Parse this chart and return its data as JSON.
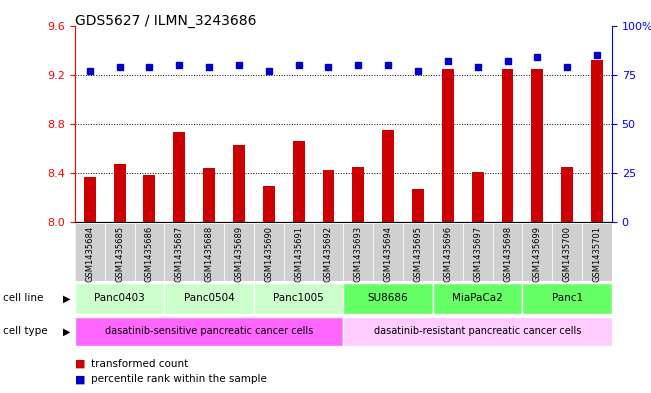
{
  "title": "GDS5627 / ILMN_3243686",
  "samples": [
    "GSM1435684",
    "GSM1435685",
    "GSM1435686",
    "GSM1435687",
    "GSM1435688",
    "GSM1435689",
    "GSM1435690",
    "GSM1435691",
    "GSM1435692",
    "GSM1435693",
    "GSM1435694",
    "GSM1435695",
    "GSM1435696",
    "GSM1435697",
    "GSM1435698",
    "GSM1435699",
    "GSM1435700",
    "GSM1435701"
  ],
  "transformed_count": [
    8.37,
    8.47,
    8.38,
    8.73,
    8.44,
    8.63,
    8.29,
    8.66,
    8.42,
    8.45,
    8.75,
    8.27,
    9.25,
    8.41,
    9.25,
    9.25,
    8.45,
    9.32
  ],
  "percentile_rank": [
    77,
    79,
    79,
    80,
    79,
    80,
    77,
    80,
    79,
    80,
    80,
    77,
    82,
    79,
    82,
    84,
    79,
    85
  ],
  "cell_lines": [
    {
      "label": "Panc0403",
      "start": 0,
      "end": 2,
      "color": "#ccffcc"
    },
    {
      "label": "Panc0504",
      "start": 3,
      "end": 5,
      "color": "#ccffcc"
    },
    {
      "label": "Panc1005",
      "start": 6,
      "end": 8,
      "color": "#ccffcc"
    },
    {
      "label": "SU8686",
      "start": 9,
      "end": 11,
      "color": "#66ff66"
    },
    {
      "label": "MiaPaCa2",
      "start": 12,
      "end": 14,
      "color": "#66ff66"
    },
    {
      "label": "Panc1",
      "start": 15,
      "end": 17,
      "color": "#66ff66"
    }
  ],
  "cell_types": [
    {
      "label": "dasatinib-sensitive pancreatic cancer cells",
      "start": 0,
      "end": 8,
      "color": "#ff66ff"
    },
    {
      "label": "dasatinib-resistant pancreatic cancer cells",
      "start": 9,
      "end": 17,
      "color": "#ffccff"
    }
  ],
  "bar_color": "#cc0000",
  "dot_color": "#0000cc",
  "ylim_left": [
    8.0,
    9.6
  ],
  "ylim_right": [
    0,
    100
  ],
  "yticks_left": [
    8.0,
    8.4,
    8.8,
    9.2,
    9.6
  ],
  "yticks_right": [
    0,
    25,
    50,
    75,
    100
  ],
  "grid_lines": [
    8.4,
    8.8,
    9.2
  ],
  "bar_width": 0.4
}
